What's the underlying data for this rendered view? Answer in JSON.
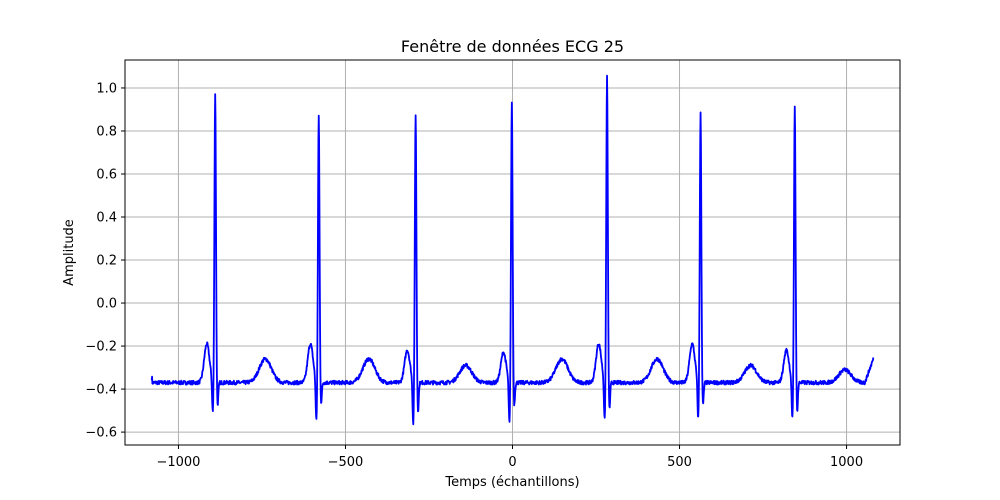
{
  "chart_data": {
    "type": "line",
    "title": "Fenêtre de données ECG 25",
    "xlabel": "Temps (échantillons)",
    "ylabel": "Amplitude",
    "xlim": [
      -1160,
      1160
    ],
    "ylim": [
      -0.66,
      1.13
    ],
    "xticks": [
      -1000,
      -500,
      0,
      500,
      1000
    ],
    "xtick_labels": [
      "−1000",
      "−500",
      "0",
      "500",
      "1000"
    ],
    "yticks": [
      -0.6,
      -0.4,
      -0.2,
      0.0,
      0.2,
      0.4,
      0.6,
      0.8,
      1.0
    ],
    "ytick_labels": [
      "−0.6",
      "−0.4",
      "−0.2",
      "0.0",
      "0.2",
      "0.4",
      "0.6",
      "0.8",
      "1.0"
    ],
    "grid": true,
    "series_color": "#0000ff",
    "series": [
      {
        "x_start": -1080,
        "x_end": 1080,
        "beats": [
          {
            "r_x": -890,
            "r_amp": 0.975,
            "s_amp": -0.48,
            "q_amp": -0.53,
            "p_amp": -0.19,
            "t_amp": -0.26
          },
          {
            "r_x": -580,
            "r_amp": 0.875,
            "s_amp": -0.47,
            "q_amp": -0.57,
            "p_amp": -0.19,
            "t_amp": -0.26
          },
          {
            "r_x": -290,
            "r_amp": 0.88,
            "s_amp": -0.51,
            "q_amp": -0.58,
            "p_amp": -0.22,
            "t_amp": -0.29
          },
          {
            "r_x": -2,
            "r_amp": 0.935,
            "s_amp": -0.48,
            "q_amp": -0.58,
            "p_amp": -0.23,
            "t_amp": -0.26
          },
          {
            "r_x": 283,
            "r_amp": 1.05,
            "s_amp": -0.5,
            "q_amp": -0.57,
            "p_amp": -0.19,
            "t_amp": -0.26
          },
          {
            "r_x": 563,
            "r_amp": 0.88,
            "s_amp": -0.48,
            "q_amp": -0.56,
            "p_amp": -0.19,
            "t_amp": -0.29
          },
          {
            "r_x": 845,
            "r_amp": 0.92,
            "s_amp": -0.51,
            "q_amp": -0.56,
            "p_amp": -0.22,
            "t_amp": -0.31
          }
        ],
        "start_amp": -0.35,
        "end_amp": -0.26
      }
    ]
  }
}
